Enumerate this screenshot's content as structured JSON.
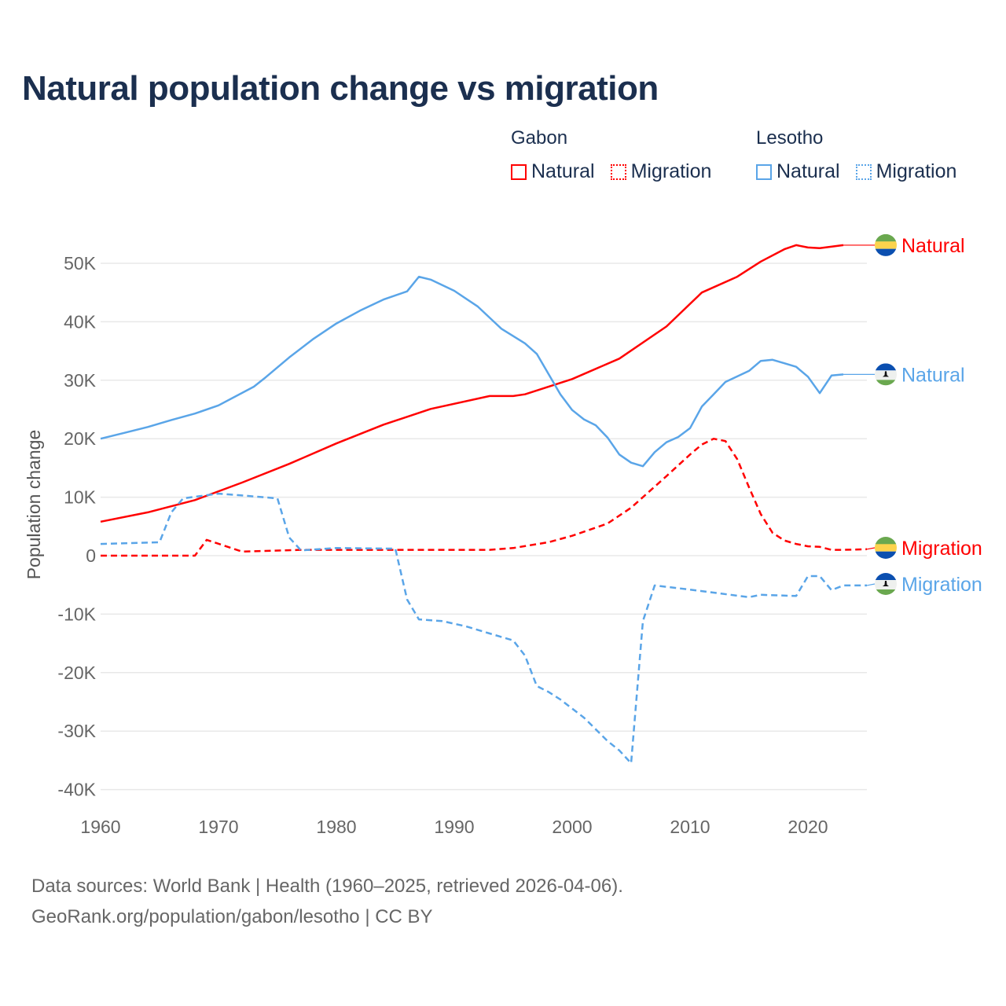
{
  "title": "Natural population change vs migration",
  "legend": {
    "groups": [
      {
        "name": "Gabon",
        "items": [
          {
            "label": "Natural",
            "style": "solid",
            "color": "#ff0000"
          },
          {
            "label": "Migration",
            "style": "dotted",
            "color": "#ff0000"
          }
        ]
      },
      {
        "name": "Lesotho",
        "items": [
          {
            "label": "Natural",
            "style": "solid",
            "color": "#5aa5e8"
          },
          {
            "label": "Migration",
            "style": "dotted",
            "color": "#5aa5e8"
          }
        ]
      }
    ]
  },
  "footer": {
    "line1": "Data sources: World Bank | Health (1960–2025, retrieved 2026-04-06).",
    "line2": "GeoRank.org/population/gabon/lesotho | CC BY"
  },
  "chart_data": {
    "type": "line",
    "title": "Natural population change vs migration",
    "xlabel": "",
    "ylabel": "Population change",
    "xlim": [
      1960,
      2025
    ],
    "ylim": [
      -40000,
      55000
    ],
    "grid": true,
    "legend_position": "top-right",
    "x_ticks": [
      1960,
      1970,
      1980,
      1990,
      2000,
      2010,
      2020
    ],
    "x_tick_labels": [
      "1960",
      "1970",
      "1980",
      "1990",
      "2000",
      "2010",
      "2020"
    ],
    "y_ticks": [
      50000,
      40000,
      30000,
      20000,
      10000,
      0,
      -10000,
      -20000,
      -30000,
      -40000
    ],
    "y_tick_labels": [
      "50K",
      "40K",
      "30K",
      "20K",
      "10K",
      "0",
      "-10K",
      "-20K",
      "-30K",
      "-40K"
    ],
    "series": [
      {
        "name": "Gabon Natural",
        "country": "Gabon",
        "end_label": "Natural",
        "color": "#ff0000",
        "dash": "solid",
        "flag": "gabon-flag",
        "x": [
          1960,
          1964,
          1968,
          1972,
          1976,
          1980,
          1984,
          1988,
          1993,
          1995,
          1996,
          2000,
          2004,
          2008,
          2011,
          2014,
          2016,
          2018,
          2019,
          2020,
          2021,
          2023
        ],
        "y": [
          5800,
          7400,
          9500,
          12500,
          15700,
          19200,
          22400,
          25100,
          27300,
          27300,
          27600,
          30200,
          33700,
          39200,
          45000,
          47700,
          50300,
          52400,
          53100,
          52700,
          52600,
          53100
        ]
      },
      {
        "name": "Lesotho Natural",
        "country": "Lesotho",
        "end_label": "Natural",
        "color": "#5aa5e8",
        "dash": "solid",
        "flag": "lesotho-flag",
        "x": [
          1960,
          1962,
          1964,
          1966,
          1968,
          1970,
          1973,
          1974,
          1976,
          1978,
          1980,
          1982,
          1984,
          1986,
          1987,
          1988,
          1990,
          1992,
          1994,
          1996,
          1997,
          1999,
          2000,
          2001,
          2002,
          2003,
          2004,
          2005,
          2006,
          2007,
          2008,
          2009,
          2010,
          2011,
          2012,
          2013,
          2015,
          2016,
          2017,
          2018,
          2019,
          2020,
          2021,
          2022,
          2023
        ],
        "y": [
          20000,
          21000,
          22000,
          23200,
          24300,
          25700,
          28900,
          30500,
          33900,
          37000,
          39700,
          41900,
          43800,
          45200,
          47700,
          47200,
          45300,
          42600,
          38800,
          36300,
          34500,
          27600,
          24900,
          23300,
          22300,
          20200,
          17300,
          15900,
          15300,
          17700,
          19400,
          20300,
          21800,
          25500,
          27600,
          29700,
          31600,
          33300,
          33500,
          32900,
          32300,
          30600,
          27800,
          30800,
          31000
        ]
      },
      {
        "name": "Gabon Migration",
        "country": "Gabon",
        "end_label": "Migration",
        "color": "#ff0000",
        "dash": "dashed",
        "flag": "gabon-flag",
        "x": [
          1960,
          1968,
          1969,
          1972,
          1977,
          1985,
          1993,
          1995,
          1998,
          2000,
          2003,
          2005,
          2007,
          2008,
          2010,
          2011,
          2012,
          2013,
          2014,
          2015,
          2016,
          2017,
          2018,
          2019,
          2020,
          2021,
          2022,
          2023,
          2025
        ],
        "y": [
          0,
          0,
          2700,
          700,
          1000,
          1000,
          1000,
          1300,
          2300,
          3400,
          5500,
          8200,
          11800,
          13600,
          17300,
          19000,
          20000,
          19600,
          16500,
          11700,
          7100,
          3900,
          2600,
          2000,
          1600,
          1500,
          1000,
          1000,
          1100
        ]
      },
      {
        "name": "Lesotho Migration",
        "country": "Lesotho",
        "end_label": "Migration",
        "color": "#5aa5e8",
        "dash": "dashed",
        "flag": "lesotho-flag",
        "x": [
          1960,
          1965,
          1966,
          1967,
          1970,
          1972,
          1975,
          1976,
          1977,
          1980,
          1985,
          1986,
          1987,
          1989,
          1991,
          1993,
          1995,
          1996,
          1997,
          1998,
          1999,
          2001,
          2003,
          2004,
          2005,
          2006,
          2007,
          2010,
          2015,
          2016,
          2019,
          2020,
          2021,
          2022,
          2023,
          2025
        ],
        "y": [
          2000,
          2300,
          7400,
          9800,
          10600,
          10300,
          9800,
          3100,
          900,
          1300,
          1200,
          -7500,
          -10900,
          -11200,
          -12100,
          -13300,
          -14500,
          -17100,
          -22300,
          -23300,
          -24600,
          -27700,
          -31700,
          -33300,
          -35500,
          -11200,
          -5100,
          -5800,
          -7100,
          -6700,
          -6900,
          -3500,
          -3500,
          -5900,
          -5100,
          -5100
        ]
      }
    ]
  }
}
